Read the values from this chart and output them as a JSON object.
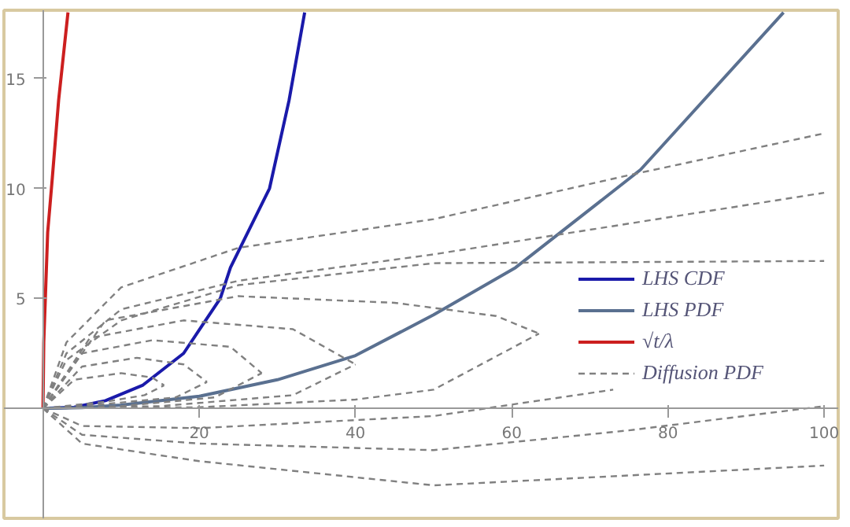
{
  "chart_data": {
    "type": "line",
    "xlim": [
      -5,
      101.8
    ],
    "ylim": [
      -5,
      18.1
    ],
    "xticks": [
      20,
      40,
      60,
      80,
      100
    ],
    "yticks": [
      5,
      10,
      15
    ],
    "grid": false,
    "legend": "right",
    "tick_labels": true,
    "series": [
      {
        "name": "LHS CDF",
        "color": "#1a1aaa",
        "line_style": "solid",
        "x": [
          0,
          4,
          8,
          12.8,
          18,
          22.7,
          24,
          29,
          31.5,
          33.5
        ],
        "values": [
          0,
          0.05,
          0.35,
          1.06,
          2.5,
          5,
          6.4,
          10,
          14,
          18
        ]
      },
      {
        "name": "LHS PDF",
        "color": "#5a7090",
        "line_style": "solid",
        "x": [
          0,
          5,
          10,
          20,
          30,
          40,
          50,
          60.5,
          76.5,
          94.8
        ],
        "values": [
          0,
          0.03,
          0.15,
          0.55,
          1.3,
          2.4,
          4.25,
          6.4,
          10.85,
          18
        ]
      },
      {
        "name": "√t/λ",
        "color": "#cc1f1f",
        "line_style": "solid",
        "x": [
          0,
          0.1,
          0.3,
          0.6,
          1.2,
          2,
          3.2
        ],
        "values": [
          0,
          3,
          5,
          8,
          10.5,
          14,
          18
        ]
      },
      {
        "name": "Diffusion PDF",
        "color": "#808080",
        "line_style": "dashed",
        "x": [
          0,
          3,
          10,
          25,
          50,
          75,
          100
        ],
        "values": [
          0,
          3,
          5.5,
          7.3,
          8.6,
          10.6,
          12.5
        ]
      },
      {
        "color": "#808080",
        "line_style": "dashed",
        "x": [
          0,
          3,
          10,
          25,
          50,
          75,
          100
        ],
        "values": [
          0,
          2.5,
          4.5,
          5.8,
          7.0,
          8.4,
          9.8
        ]
      },
      {
        "color": "#808080",
        "line_style": "dashed",
        "x": [
          0,
          3,
          10,
          25,
          50,
          100
        ],
        "values": [
          0,
          2.2,
          4.0,
          5.6,
          6.6,
          6.7
        ]
      },
      {
        "color": "#808080",
        "line_style": "dashed",
        "x": [
          0,
          4,
          10,
          14,
          15.5
        ],
        "values": [
          0,
          1.3,
          1.6,
          1.4,
          1.05
        ]
      },
      {
        "color": "#808080",
        "line_style": "dashed",
        "x": [
          0,
          8,
          13,
          15.5
        ],
        "values": [
          0,
          0.3,
          0.6,
          1.05
        ]
      },
      {
        "color": "#808080",
        "line_style": "dashed",
        "x": [
          0,
          5,
          12,
          18,
          21
        ],
        "values": [
          0,
          1.9,
          2.3,
          2.0,
          1.2
        ]
      },
      {
        "color": "#808080",
        "line_style": "dashed",
        "x": [
          0,
          8,
          17,
          21
        ],
        "values": [
          0,
          0.2,
          0.5,
          1.2
        ]
      },
      {
        "color": "#808080",
        "line_style": "dashed",
        "x": [
          0,
          5,
          14,
          24,
          28
        ],
        "values": [
          0,
          2.5,
          3.1,
          2.8,
          1.6
        ]
      },
      {
        "color": "#808080",
        "line_style": "dashed",
        "x": [
          0,
          10,
          22,
          28
        ],
        "values": [
          0,
          0.1,
          0.5,
          1.6
        ]
      },
      {
        "color": "#808080",
        "line_style": "dashed",
        "x": [
          0,
          6,
          18,
          32,
          40
        ],
        "values": [
          0,
          3.2,
          4.0,
          3.6,
          2.0
        ]
      },
      {
        "color": "#808080",
        "line_style": "dashed",
        "x": [
          0,
          15,
          32,
          40
        ],
        "values": [
          0,
          0.1,
          0.6,
          2.0
        ]
      },
      {
        "color": "#808080",
        "line_style": "dashed",
        "x": [
          0,
          8,
          25,
          45,
          58,
          63.5
        ],
        "values": [
          0,
          4.0,
          5.1,
          4.8,
          4.2,
          3.4
        ]
      },
      {
        "color": "#808080",
        "line_style": "dashed",
        "x": [
          0,
          20,
          40,
          50,
          63.5
        ],
        "values": [
          0,
          0.05,
          0.4,
          0.85,
          3.4
        ]
      },
      {
        "color": "#808080",
        "line_style": "dashed",
        "x": [
          0,
          5,
          20,
          50,
          73
        ],
        "values": [
          0,
          -0.8,
          -0.9,
          -0.35,
          0.85
        ]
      },
      {
        "color": "#808080",
        "line_style": "dashed",
        "x": [
          0,
          5,
          20,
          50,
          75,
          100
        ],
        "values": [
          0,
          -1.2,
          -1.6,
          -1.9,
          -1.0,
          0.1
        ]
      },
      {
        "color": "#808080",
        "line_style": "dashed",
        "x": [
          0,
          5,
          20,
          50,
          100
        ],
        "values": [
          0,
          -1.6,
          -2.4,
          -3.5,
          -2.6
        ]
      }
    ]
  }
}
